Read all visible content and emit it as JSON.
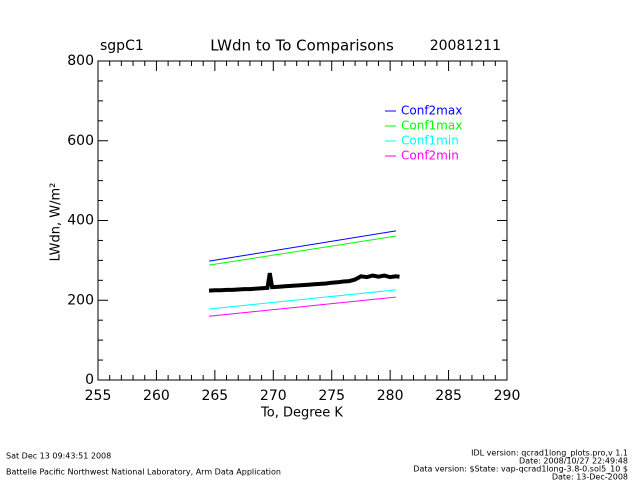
{
  "chart_data": {
    "type": "line",
    "title": "LWdn to To Comparisons",
    "site": "sgpC1",
    "date": "20081211",
    "x_label": "To, Degree K",
    "y_label": "LWdn, W/m²",
    "xlim": [
      255,
      290
    ],
    "xticks": [
      255,
      260,
      265,
      270,
      275,
      280,
      285,
      290
    ],
    "xminorticks": [
      256,
      257,
      258,
      259,
      261,
      262,
      263,
      264,
      266,
      267,
      268,
      269,
      271,
      272,
      273,
      274,
      276,
      277,
      278,
      279,
      281,
      282,
      283,
      284,
      286,
      287,
      288,
      289
    ],
    "ylim": [
      0,
      800
    ],
    "yticks": [
      0,
      200,
      400,
      600,
      800
    ],
    "yminorticks": [
      50,
      100,
      150,
      250,
      300,
      350,
      450,
      500,
      550,
      650,
      700,
      750
    ],
    "series": [
      {
        "name": "Conf2max",
        "color": "#0000ff",
        "x": [
          264.5,
          280.5
        ],
        "values": [
          298,
          374
        ]
      },
      {
        "name": "Conf1max",
        "color": "#00ff00",
        "x": [
          264.5,
          280.5
        ],
        "values": [
          288,
          361
        ]
      },
      {
        "name": "Conf1min",
        "color": "#00ffff",
        "x": [
          264.5,
          280.5
        ],
        "values": [
          178,
          226
        ]
      },
      {
        "name": "Conf2min",
        "color": "#ff00ff",
        "x": [
          264.5,
          280.5
        ],
        "values": [
          160,
          208
        ]
      },
      {
        "color": "#000000",
        "x": [
          264.5,
          265,
          265.5,
          266,
          266.5,
          267,
          267.5,
          268,
          268.5,
          269,
          269.5,
          269.7,
          269.9,
          270.5,
          271,
          271.5,
          272,
          272.5,
          273,
          273.5,
          274,
          274.5,
          275,
          275.5,
          276,
          276.5,
          277,
          277.5,
          278,
          278.5,
          279,
          279.5,
          280,
          280.5,
          280.8
        ],
        "values": [
          224,
          225,
          225,
          226,
          226,
          227,
          228,
          228,
          229,
          230,
          231,
          268,
          233,
          234,
          235,
          236,
          237,
          238,
          239,
          240,
          241,
          242,
          244,
          245,
          247,
          248,
          252,
          260,
          258,
          262,
          259,
          262,
          258,
          260,
          259
        ]
      }
    ],
    "footer_left": [
      "Sat Dec 13 09:43:51 2008",
      "Battelle Pacific Northwest National Laboratory, Arm Data Application"
    ],
    "footer_right": [
      "IDL version: qcrad1long_plots.pro,v 1.1",
      "Date: 2008/10/27 22:49:48",
      "Data version: $State: vap-qcrad1long-3.8-0.sol5_10 $",
      "Date: 13-Dec-2008"
    ]
  }
}
